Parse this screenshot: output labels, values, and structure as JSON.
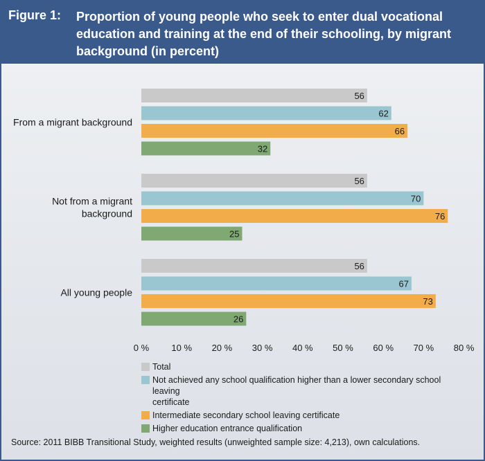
{
  "figure": {
    "label": "Figure 1:",
    "title": "Proportion of young people who seek to enter dual vocational education and training at the end of their schooling, by migrant background (in percent)"
  },
  "chart_data": {
    "type": "bar",
    "orientation": "horizontal",
    "categories": [
      "From a migrant background",
      "Not from a migrant background",
      "All young people"
    ],
    "series": [
      {
        "name": "Total",
        "color": "#c9c9c9",
        "values": [
          56,
          56,
          56
        ]
      },
      {
        "name": "Not achieved any school qualification higher than a lower secondary school leaving certificate",
        "color": "#9ac6d1",
        "values": [
          62,
          70,
          67
        ]
      },
      {
        "name": "Intermediate secondary school leaving certificate",
        "color": "#f2ad4a",
        "values": [
          66,
          76,
          73
        ]
      },
      {
        "name": "Higher education entrance qualification",
        "color": "#7fa873",
        "values": [
          32,
          25,
          26
        ]
      }
    ],
    "xlim": [
      0,
      80
    ],
    "tick_labels": [
      "0 %",
      "10 %",
      "20 %",
      "30 %",
      "40 %",
      "50 %",
      "60 %",
      "70 %",
      "80 %"
    ],
    "grid": false,
    "legend_position": "bottom"
  },
  "category_label_lines": [
    [
      "From a migrant background"
    ],
    [
      "Not from a migrant",
      "background"
    ],
    [
      "All young people"
    ]
  ],
  "legend": {
    "items": [
      {
        "color": "#c9c9c9",
        "lines": [
          "Total"
        ]
      },
      {
        "color": "#9ac6d1",
        "lines": [
          "Not achieved any school qualification higher than a lower secondary school leaving",
          "certificate"
        ]
      },
      {
        "color": "#f2ad4a",
        "lines": [
          "Intermediate secondary school leaving certificate"
        ]
      },
      {
        "color": "#7fa873",
        "lines": [
          "Higher education entrance qualification"
        ]
      }
    ]
  },
  "source": "Source: 2011 BIBB Transitional Study, weighted results (unweighted sample size: 4,213), own calculations."
}
